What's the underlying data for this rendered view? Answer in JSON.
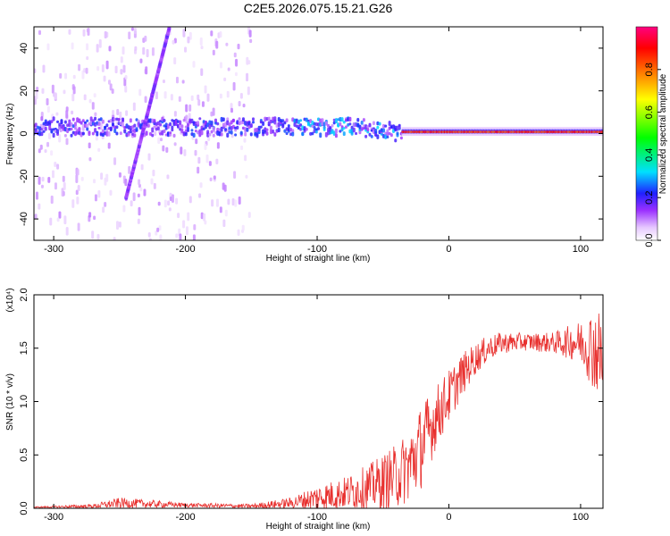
{
  "title": "C2E5.2026.075.15.21.G26",
  "colors": {
    "signal": "#e8302e",
    "axis": "#000000",
    "spectrogram_cmap": [
      "#ffffff",
      "#e6c8ff",
      "#9b30ff",
      "#2020ff",
      "#00e0ff",
      "#00ff00",
      "#ffff00",
      "#ff8000",
      "#ff0000",
      "#ff0080"
    ]
  },
  "chart_data": [
    {
      "type": "heatmap",
      "title": "C2E5.2026.075.15.21.G26",
      "xlabel": "Height of straight line (km)",
      "ylabel": "Frequency (Hz)",
      "xlim": [
        -315,
        117
      ],
      "ylim": [
        -50,
        50
      ],
      "x_ticks": [
        -300,
        -200,
        -100,
        0,
        100
      ],
      "y_ticks": [
        -40,
        -20,
        0,
        20,
        40
      ],
      "x_tick_labels": [
        "-300",
        "-200",
        "-100",
        "0",
        "100"
      ],
      "y_tick_labels": [
        "-40",
        "-20",
        "0",
        "20",
        "40"
      ],
      "colorbar": {
        "label": "Normalized spectral amplitude",
        "range": [
          0,
          1
        ],
        "ticks": [
          0.0,
          0.2,
          0.4,
          0.6,
          0.8
        ],
        "tick_labels": [
          "0.0",
          "0.2",
          "0.4",
          "0.6",
          "0.8"
        ]
      },
      "features": [
        {
          "name": "main band",
          "x_range": [
            -315,
            117
          ],
          "center_freq_hz": 3,
          "note": "noisy purple/green band below ~-40 km, strong red band at ~0-1 Hz above ~-30 km"
        },
        {
          "name": "diagonal streak",
          "x_start": -245,
          "f_start": -30,
          "x_end": -212,
          "f_end": 50
        }
      ]
    },
    {
      "type": "line",
      "xlabel": "Height of straight line (km)",
      "ylabel": "SNR (10 * v/v)",
      "y_multiplier": "(x10⁴)",
      "xlim": [
        -315,
        117
      ],
      "ylim": [
        0,
        2.0
      ],
      "x_ticks": [
        -300,
        -200,
        -100,
        0,
        100
      ],
      "y_ticks": [
        0.0,
        0.5,
        1.0,
        1.5,
        2.0
      ],
      "x_tick_labels": [
        "-300",
        "-200",
        "-100",
        "0",
        "100"
      ],
      "y_tick_labels": [
        "0.0",
        "0.5",
        "1.0",
        "1.5",
        "2.0"
      ],
      "series": [
        {
          "name": "SNR",
          "color": "#e8302e",
          "trend_x": [
            -315,
            -270,
            -250,
            -200,
            -150,
            -120,
            -100,
            -80,
            -60,
            -40,
            -30,
            -20,
            -10,
            0,
            10,
            20,
            30,
            40,
            60,
            80,
            100,
            110,
            117
          ],
          "trend_y": [
            0.01,
            0.02,
            0.05,
            0.03,
            0.02,
            0.05,
            0.1,
            0.14,
            0.2,
            0.3,
            0.4,
            0.6,
            0.85,
            1.05,
            1.25,
            1.4,
            1.5,
            1.55,
            1.56,
            1.55,
            1.56,
            1.5,
            1.4
          ],
          "noise_amp_y": [
            0.005,
            0.02,
            0.05,
            0.02,
            0.02,
            0.05,
            0.12,
            0.15,
            0.22,
            0.3,
            0.35,
            0.4,
            0.3,
            0.25,
            0.2,
            0.15,
            0.12,
            0.1,
            0.08,
            0.1,
            0.2,
            0.4,
            0.45
          ]
        }
      ]
    }
  ]
}
